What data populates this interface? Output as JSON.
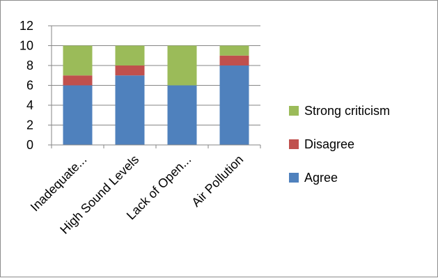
{
  "chart_data": {
    "type": "bar",
    "stacked": true,
    "categories": [
      "Inadequate...",
      "High Sound Levels",
      "Lack of Open...",
      "Air Pollution"
    ],
    "series": [
      {
        "name": "Agree",
        "values": [
          6,
          7,
          6,
          8
        ],
        "color": "#4f81bd"
      },
      {
        "name": "Disagree",
        "values": [
          1,
          1,
          0,
          1
        ],
        "color": "#c0504d"
      },
      {
        "name": "Strong criticism",
        "values": [
          3,
          2,
          4,
          1
        ],
        "color": "#9bbb59"
      }
    ],
    "yticks": [
      "0",
      "2",
      "4",
      "6",
      "8",
      "10",
      "12"
    ],
    "ylim": [
      0,
      12
    ],
    "grid": true,
    "legend_position": "right"
  }
}
